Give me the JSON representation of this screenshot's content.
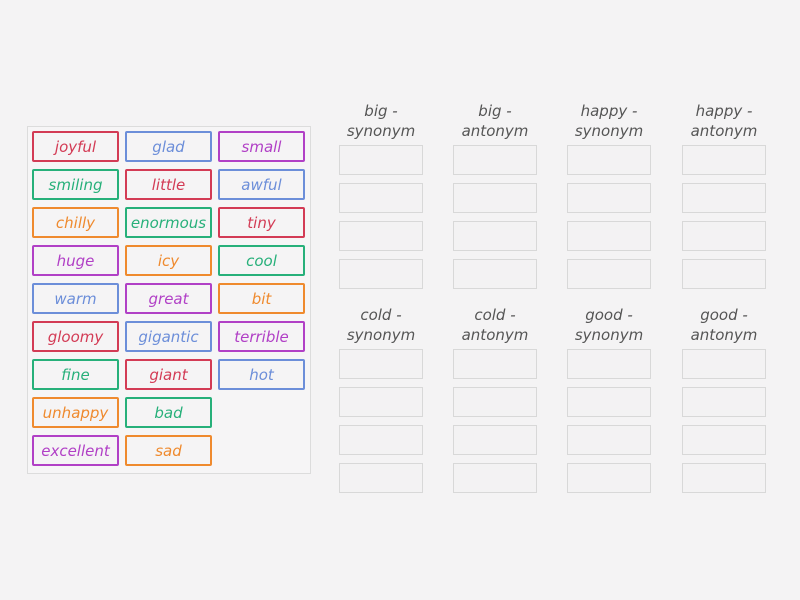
{
  "colors": {
    "red": "#d33b55",
    "blue": "#6c8ed9",
    "purple": "#b140c6",
    "green": "#27b07a",
    "orange": "#ef8a2e"
  },
  "cards": [
    {
      "word": "joyful",
      "color": "red"
    },
    {
      "word": "glad",
      "color": "blue"
    },
    {
      "word": "small",
      "color": "purple"
    },
    {
      "word": "smiling",
      "color": "green"
    },
    {
      "word": "little",
      "color": "red"
    },
    {
      "word": "awful",
      "color": "blue"
    },
    {
      "word": "chilly",
      "color": "orange"
    },
    {
      "word": "enormous",
      "color": "green"
    },
    {
      "word": "tiny",
      "color": "red"
    },
    {
      "word": "huge",
      "color": "purple"
    },
    {
      "word": "icy",
      "color": "orange"
    },
    {
      "word": "cool",
      "color": "green"
    },
    {
      "word": "warm",
      "color": "blue"
    },
    {
      "word": "great",
      "color": "purple"
    },
    {
      "word": "bit",
      "color": "orange"
    },
    {
      "word": "gloomy",
      "color": "red"
    },
    {
      "word": "gigantic",
      "color": "blue"
    },
    {
      "word": "terrible",
      "color": "purple"
    },
    {
      "word": "fine",
      "color": "green"
    },
    {
      "word": "giant",
      "color": "red"
    },
    {
      "word": "hot",
      "color": "blue"
    },
    {
      "word": "unhappy",
      "color": "orange"
    },
    {
      "word": "bad",
      "color": "green"
    },
    {
      "word": "excellent",
      "color": "purple"
    },
    {
      "word": "sad",
      "color": "orange"
    }
  ],
  "groups": [
    {
      "line1": "big -",
      "line2": "synonym"
    },
    {
      "line1": "big -",
      "line2": "antonym"
    },
    {
      "line1": "happy -",
      "line2": "synonym"
    },
    {
      "line1": "happy -",
      "line2": "antonym"
    },
    {
      "line1": "cold -",
      "line2": "synonym"
    },
    {
      "line1": "cold -",
      "line2": "antonym"
    },
    {
      "line1": "good -",
      "line2": "synonym"
    },
    {
      "line1": "good -",
      "line2": "antonym"
    }
  ]
}
